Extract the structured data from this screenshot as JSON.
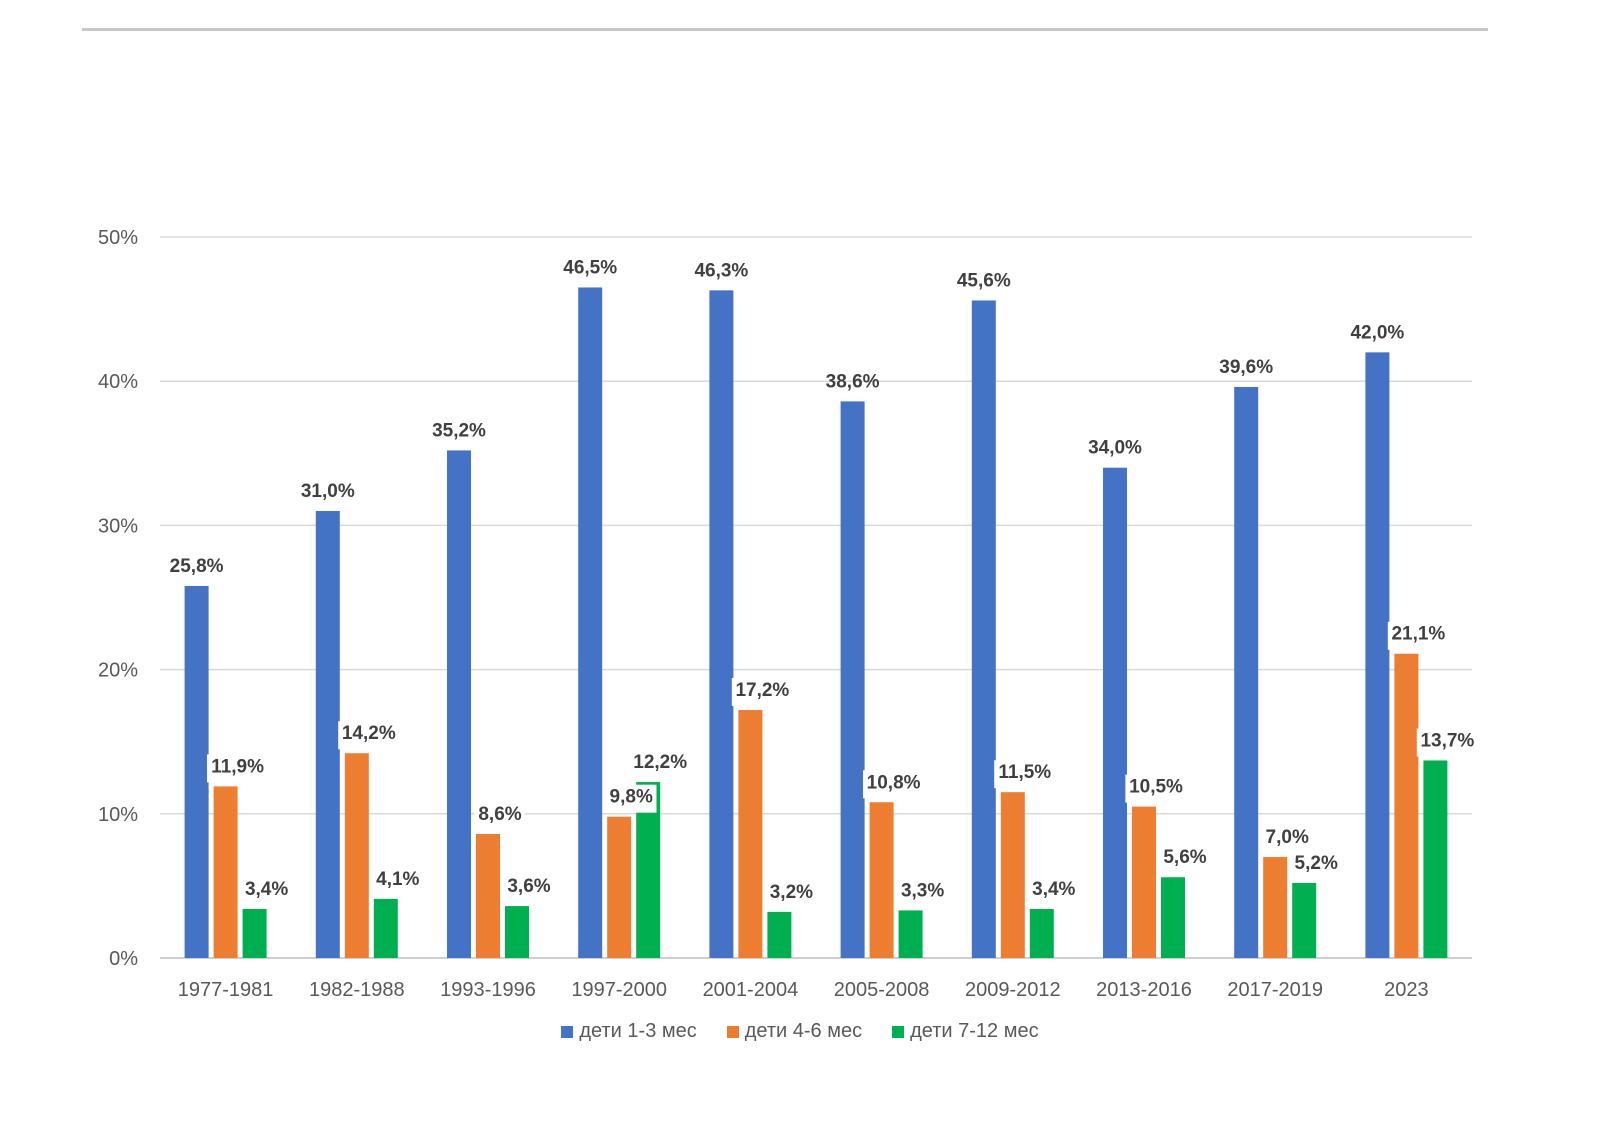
{
  "chart_data": {
    "type": "bar",
    "title": "",
    "xlabel": "",
    "ylabel": "",
    "ylim": [
      0,
      50
    ],
    "yticks": [
      "0%",
      "10%",
      "20%",
      "30%",
      "40%",
      "50%"
    ],
    "grid": true,
    "legend_position": "bottom",
    "categories": [
      "1977-1981",
      "1982-1988",
      "1993-1996",
      "1997-2000",
      "2001-2004",
      "2005-2008",
      "2009-2012",
      "2013-2016",
      "2017-2019",
      "2023"
    ],
    "series": [
      {
        "name": "дети 1-3 мес",
        "color": "#4472c4",
        "values": [
          25.8,
          31.0,
          35.2,
          46.5,
          46.3,
          38.6,
          45.6,
          34.0,
          39.6,
          42.0
        ],
        "labels": [
          "25,8%",
          "31,0%",
          "35,2%",
          "46,5%",
          "46,3%",
          "38,6%",
          "45,6%",
          "34,0%",
          "39,6%",
          "42,0%"
        ]
      },
      {
        "name": "дети 4-6 мес",
        "color": "#ed7d31",
        "values": [
          11.9,
          14.2,
          8.6,
          9.8,
          17.2,
          10.8,
          11.5,
          10.5,
          7.0,
          21.1
        ],
        "labels": [
          "11,9%",
          "14,2%",
          "8,6%",
          "9,8%",
          "17,2%",
          "10,8%",
          "11,5%",
          "10,5%",
          "7,0%",
          "21,1%"
        ]
      },
      {
        "name": "дети 7-12 мес",
        "color": "#00b050",
        "values": [
          3.4,
          4.1,
          3.6,
          12.2,
          3.2,
          3.3,
          3.4,
          5.6,
          5.2,
          13.7
        ],
        "labels": [
          "3,4%",
          "4,1%",
          "3,6%",
          "12,2%",
          "3,2%",
          "3,3%",
          "3,4%",
          "5,6%",
          "5,2%",
          "13,7%"
        ]
      }
    ]
  }
}
